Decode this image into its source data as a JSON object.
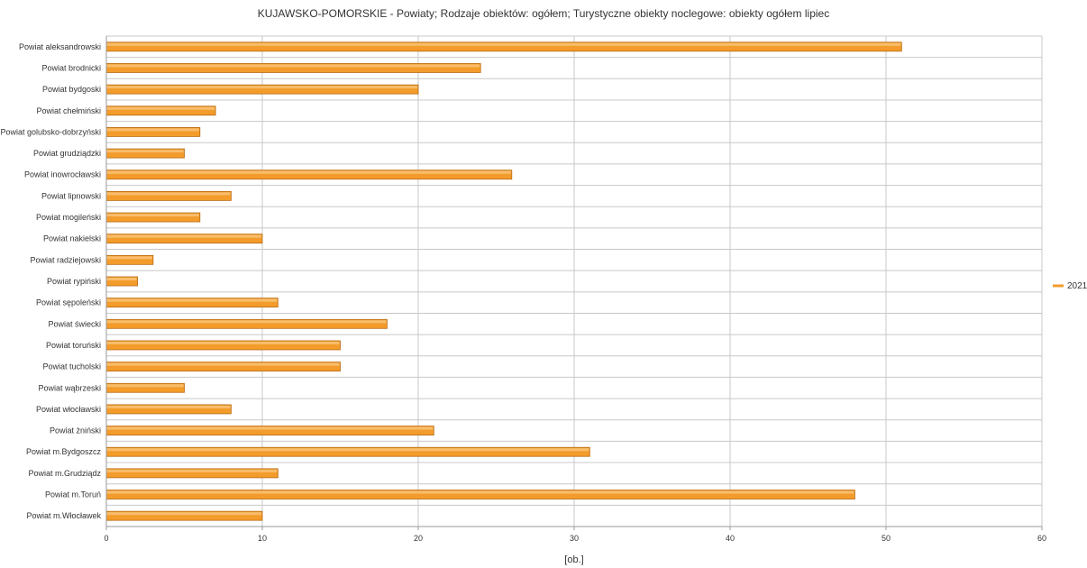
{
  "chart_data": {
    "type": "bar",
    "orientation": "horizontal",
    "title": "KUJAWSKO-POMORSKIE - Powiaty; Rodzaje obiektów: ogółem; Turystyczne obiekty noclegowe: obiekty ogółem lipiec",
    "xlabel": "[ob.]",
    "ylabel": "",
    "xlim": [
      0,
      60
    ],
    "xticks": [
      0,
      10,
      20,
      30,
      40,
      50,
      60
    ],
    "grid": true,
    "legend_position": "right",
    "categories": [
      "Powiat aleksandrowski",
      "Powiat brodnicki",
      "Powiat bydgoski",
      "Powiat chełmiński",
      "Powiat golubsko-dobrzyński",
      "Powiat grudziądzki",
      "Powiat inowrocławski",
      "Powiat lipnowski",
      "Powiat mogileński",
      "Powiat nakielski",
      "Powiat radziejowski",
      "Powiat rypiński",
      "Powiat sępoleński",
      "Powiat świecki",
      "Powiat toruński",
      "Powiat tucholski",
      "Powiat wąbrzeski",
      "Powiat włocławski",
      "Powiat żniński",
      "Powiat m.Bydgoszcz",
      "Powiat m.Grudziądz",
      "Powiat m.Toruń",
      "Powiat m.Włocławek"
    ],
    "series": [
      {
        "name": "2021",
        "color": "#f39c2b",
        "values": [
          51,
          24,
          20,
          7,
          6,
          5,
          26,
          8,
          6,
          10,
          3,
          2,
          11,
          18,
          15,
          15,
          5,
          8,
          21,
          31,
          11,
          48,
          10
        ]
      }
    ]
  }
}
